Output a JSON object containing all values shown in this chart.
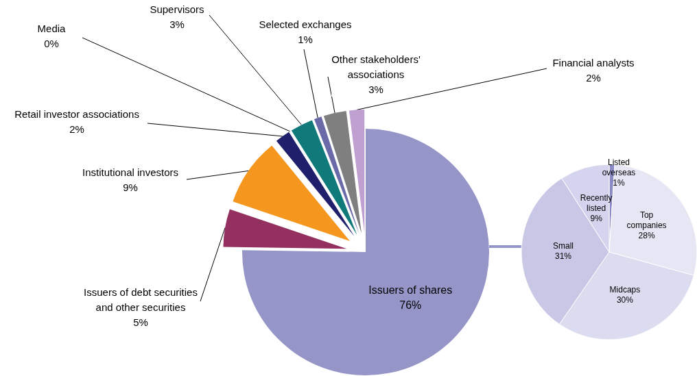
{
  "chart_data": [
    {
      "type": "pie",
      "categories": [
        "Issuers of shares",
        "Issuers of debt securities\nand other securities",
        "Institutional investors",
        "Retail investor associations",
        "Media",
        "Supervisors",
        "Selected exchanges",
        "Other stakeholders'\nassociations",
        "Financial analysts"
      ],
      "values": [
        76,
        5,
        9,
        2,
        0,
        3,
        1,
        3,
        2
      ],
      "value_labels": [
        "76%",
        "5%",
        "9%",
        "2%",
        "0%",
        "3%",
        "1%",
        "3%",
        "2%"
      ],
      "colors": [
        "#9595c8",
        "#943060",
        "#f5961e",
        "#1f1f6b",
        "#8080c0",
        "#107a7a",
        "#6a6aa8",
        "#7f7f7f",
        "#c0a0d0"
      ],
      "legend": false
    },
    {
      "type": "pie",
      "categories": [
        "Listed\noverseas",
        "Top\ncompanies",
        "Midcaps",
        "Small",
        "Recently\nlisted"
      ],
      "values": [
        1,
        28,
        30,
        31,
        9
      ],
      "value_labels": [
        "1%",
        "28%",
        "30%",
        "31%",
        "9%"
      ],
      "colors": [
        "#8a8ac4",
        "#e6e6f4",
        "#dcdcf0",
        "#c8c8e6",
        "#d4d4ee"
      ],
      "legend": false
    }
  ]
}
